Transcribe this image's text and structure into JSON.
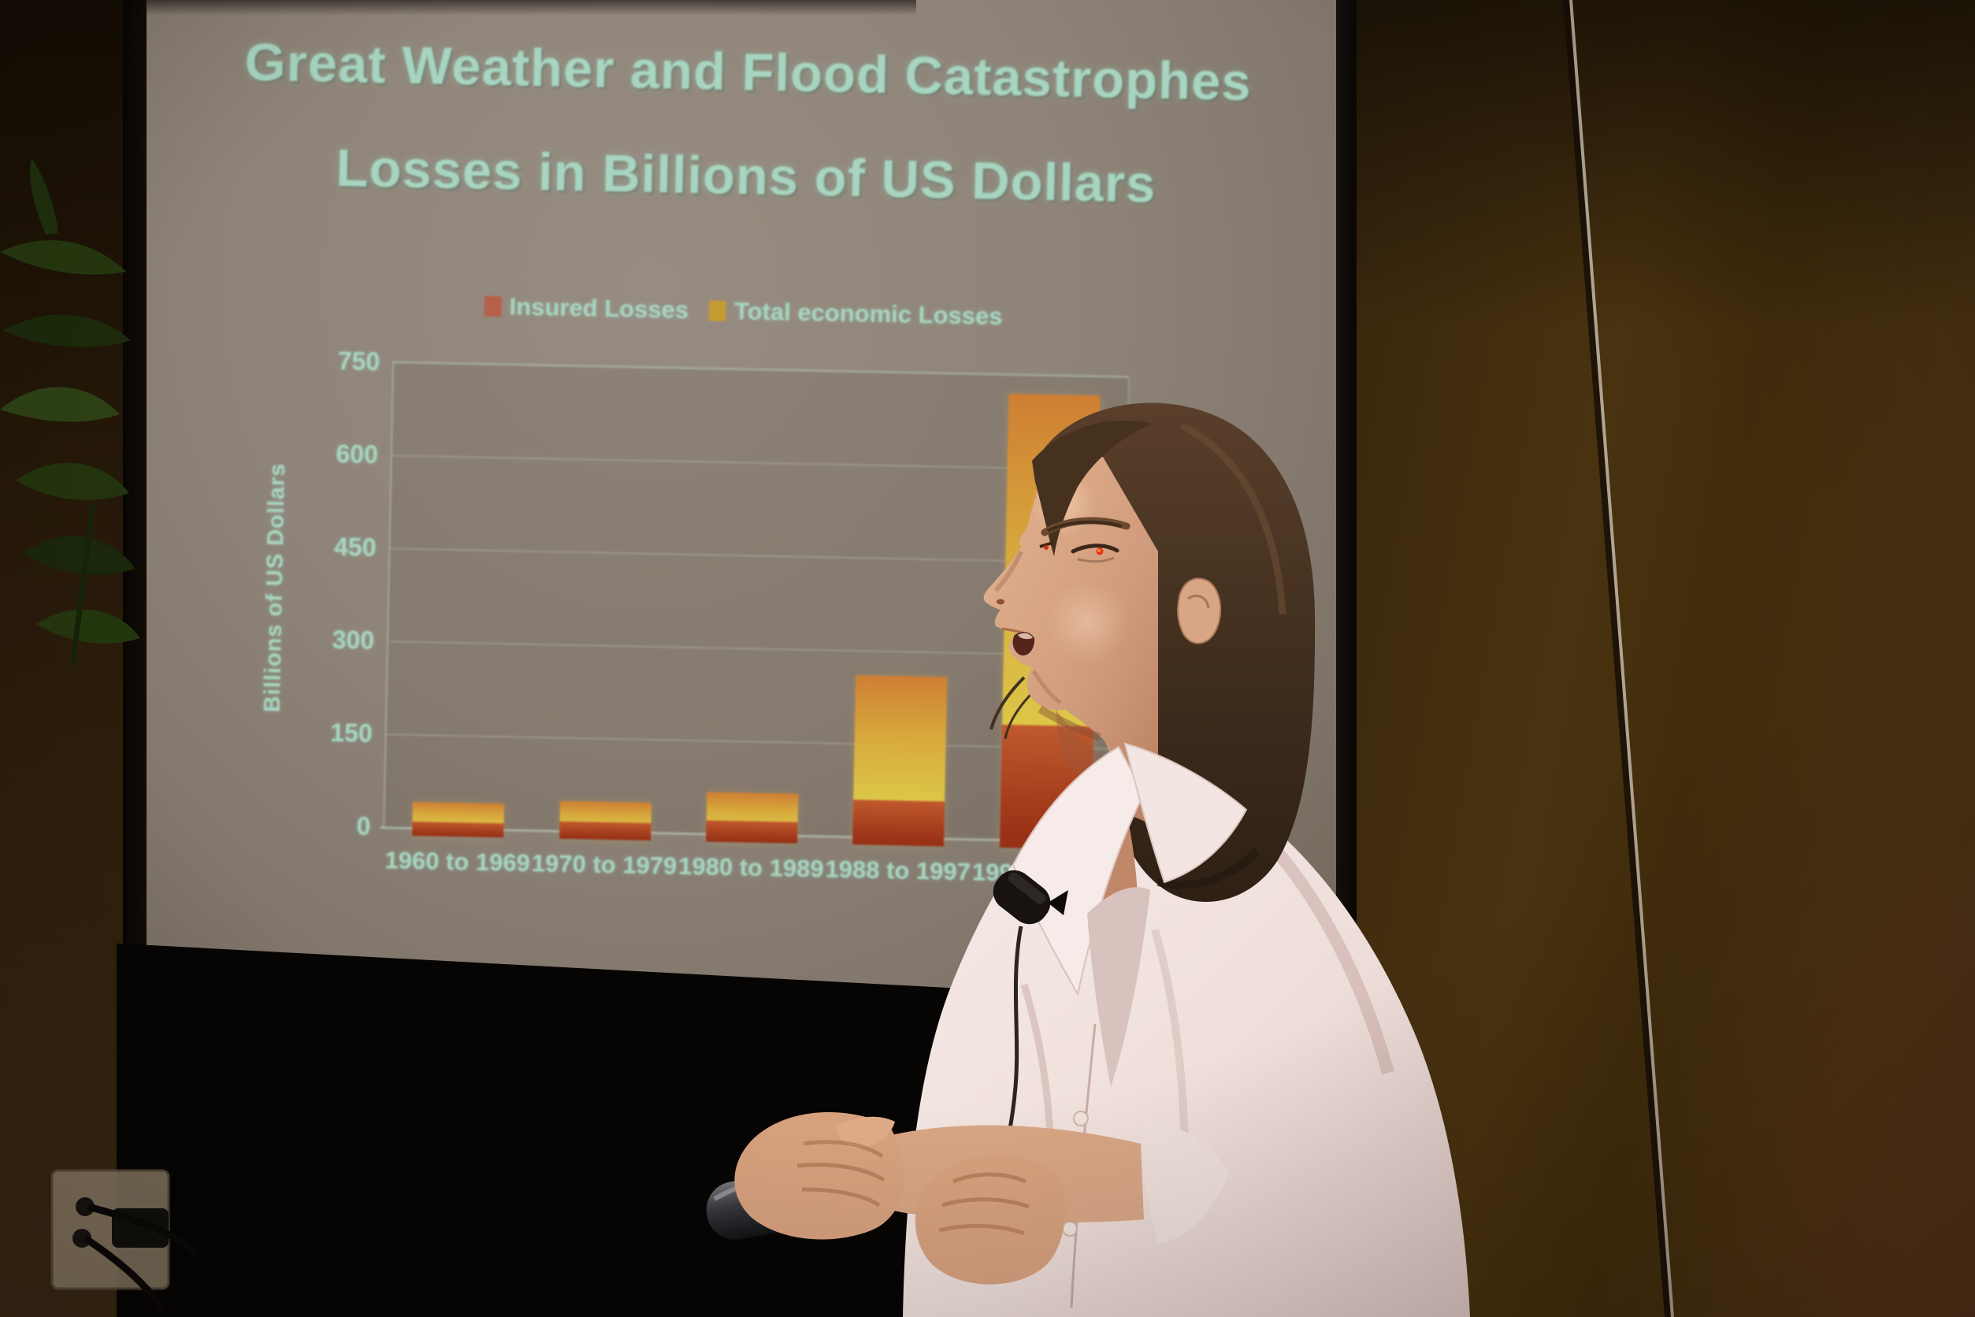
{
  "scene": {
    "setting": "conference room presentation, photo of presenter beside projected slide",
    "presenter": {
      "description": "woman with shoulder-length brown hair wearing a pale pink button-up shirt, shown in left-facing profile while speaking",
      "accessories": [
        "lavalier-microphone clipped to collar",
        "handheld presentation remote"
      ]
    },
    "environment": [
      "projection screen",
      "black stage drape below screen",
      "brown wood-paneled walls",
      "houseplant at left edge",
      "power outlet with cords at lower left"
    ],
    "occlusion_note": "presenter partially covers right side of the slide; fifth x-axis label only shows '199'"
  },
  "slide": {
    "title_line1": "Great Weather and Flood Catastrophes",
    "title_line2": "Losses in Billions of US Dollars",
    "text_color": "#a7d5c1"
  },
  "chart_data": {
    "type": "bar",
    "title": "Great Weather and Flood Catastrophes",
    "subtitle": "Losses in Billions of US Dollars",
    "categories": [
      "1960 to 1969",
      "1970 to 1979",
      "1980 to 1989",
      "1988 to 1997",
      "1990 to 1999"
    ],
    "series": [
      {
        "name": "Insured Losses",
        "color": "#b5614a",
        "values": [
          10,
          15,
          22,
          60,
          185
        ]
      },
      {
        "name": "Total economic Losses",
        "color": "#c49a33",
        "values": [
          42,
          48,
          68,
          260,
          720
        ]
      }
    ],
    "ylabel": "Billions of US Dollars",
    "yticks": [
      750,
      600,
      450,
      300,
      150,
      0
    ],
    "ylim": [
      0,
      750
    ],
    "grid": true,
    "legend_position": "top-center above plot",
    "bar_colors": {
      "total_gradient": [
        "#cf7f33",
        "#d8c94e"
      ],
      "insured_gradient": [
        "#c1592e",
        "#962f14"
      ]
    }
  },
  "colors": {
    "slide_text": "#a7d5c1",
    "screen_surface": "#8d8378",
    "wall_brown": "#49320f",
    "drape_black": "#070503",
    "shirt_pink": "#f2e5e1",
    "hair_brown": "#43301f",
    "skin": "#d09b7c"
  }
}
